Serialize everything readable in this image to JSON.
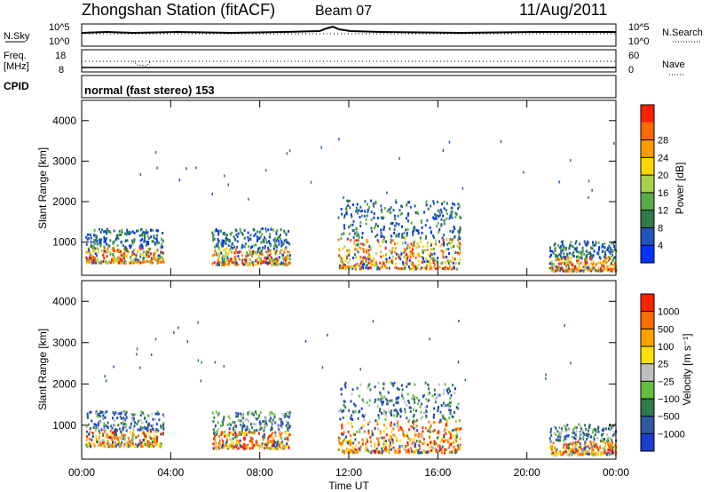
{
  "header": {
    "station": "Zhongshan Station (fitACF)",
    "beam": "Beam 07",
    "date": "11/Aug/2011"
  },
  "panels": {
    "nsky_label": "N.Sky",
    "nsky_ticks": [
      "10^5",
      "10^0"
    ],
    "nsearch_label": "N.Search",
    "nsearch_ticks": [
      "10^5",
      "10^0"
    ],
    "freq_label": "Freq.",
    "freq_unit": "[MHz]",
    "freq_ticks": [
      "18",
      "8"
    ],
    "nave_label": "Nave",
    "nave_ticks": [
      "60",
      "0"
    ],
    "cpid_label": "CPID",
    "cpid_text": "normal (fast stereo) 153"
  },
  "chart_data": [
    {
      "type": "heatmap",
      "title": "",
      "xlabel": "Time UT",
      "ylabel": "Slant Range [km]",
      "ylim": [
        180,
        4500
      ],
      "x_ticks": [
        "00:00",
        "04:00",
        "08:00",
        "12:00",
        "16:00",
        "20:00",
        "00:00"
      ],
      "y_ticks": [
        "1000",
        "2000",
        "3000",
        "4000"
      ],
      "colorbar": {
        "label": "Power [dB]",
        "ticks": [
          "4",
          "8",
          "12",
          "16",
          "20",
          "24",
          "28"
        ],
        "colors": [
          "#0033ff",
          "#2255bb",
          "#2f7a4a",
          "#5aaa4a",
          "#a8d04a",
          "#ffd400",
          "#ff9a00",
          "#ff6a00",
          "#ff2000"
        ]
      },
      "scatter_regions": [
        {
          "start_ut": "00:10",
          "end_ut": "03:40",
          "range_km": [
            450,
            1300
          ],
          "dominant": "16-28 dB"
        },
        {
          "start_ut": "05:50",
          "end_ut": "09:20",
          "range_km": [
            400,
            1300
          ],
          "dominant": "8-24 dB"
        },
        {
          "start_ut": "11:30",
          "end_ut": "17:00",
          "range_km": [
            300,
            2000
          ],
          "dominant": "4-28 dB"
        },
        {
          "start_ut": "21:00",
          "end_ut": "23:59",
          "range_km": [
            250,
            1000
          ],
          "dominant": "12-28 dB"
        }
      ]
    },
    {
      "type": "heatmap",
      "title": "",
      "xlabel": "Time UT",
      "ylabel": "Slant Range [km]",
      "ylim": [
        180,
        4500
      ],
      "x_ticks": [
        "00:00",
        "04:00",
        "08:00",
        "12:00",
        "16:00",
        "20:00",
        "00:00"
      ],
      "y_ticks": [
        "1000",
        "2000",
        "3000",
        "4000"
      ],
      "colorbar": {
        "label": "Velocity [m s⁻¹]",
        "ticks": [
          "1000",
          "500",
          "100",
          "25",
          "−25",
          "−100",
          "−500",
          "−1000"
        ],
        "colors": [
          "#1a3fcc",
          "#2f5aa0",
          "#2f7a4a",
          "#66c040",
          "#bfbfbf",
          "#ffe000",
          "#ffa000",
          "#ff7000",
          "#ff2000"
        ]
      },
      "scatter_regions": [
        {
          "start_ut": "00:10",
          "end_ut": "03:40",
          "range_km": [
            450,
            1300
          ],
          "dominant": "orange/green"
        },
        {
          "start_ut": "05:50",
          "end_ut": "09:20",
          "range_km": [
            400,
            1300
          ],
          "dominant": "orange"
        },
        {
          "start_ut": "11:30",
          "end_ut": "17:00",
          "range_km": [
            300,
            2000
          ],
          "dominant": "green/orange"
        },
        {
          "start_ut": "21:00",
          "end_ut": "23:59",
          "range_km": [
            250,
            1000
          ],
          "dominant": "orange"
        }
      ]
    }
  ]
}
